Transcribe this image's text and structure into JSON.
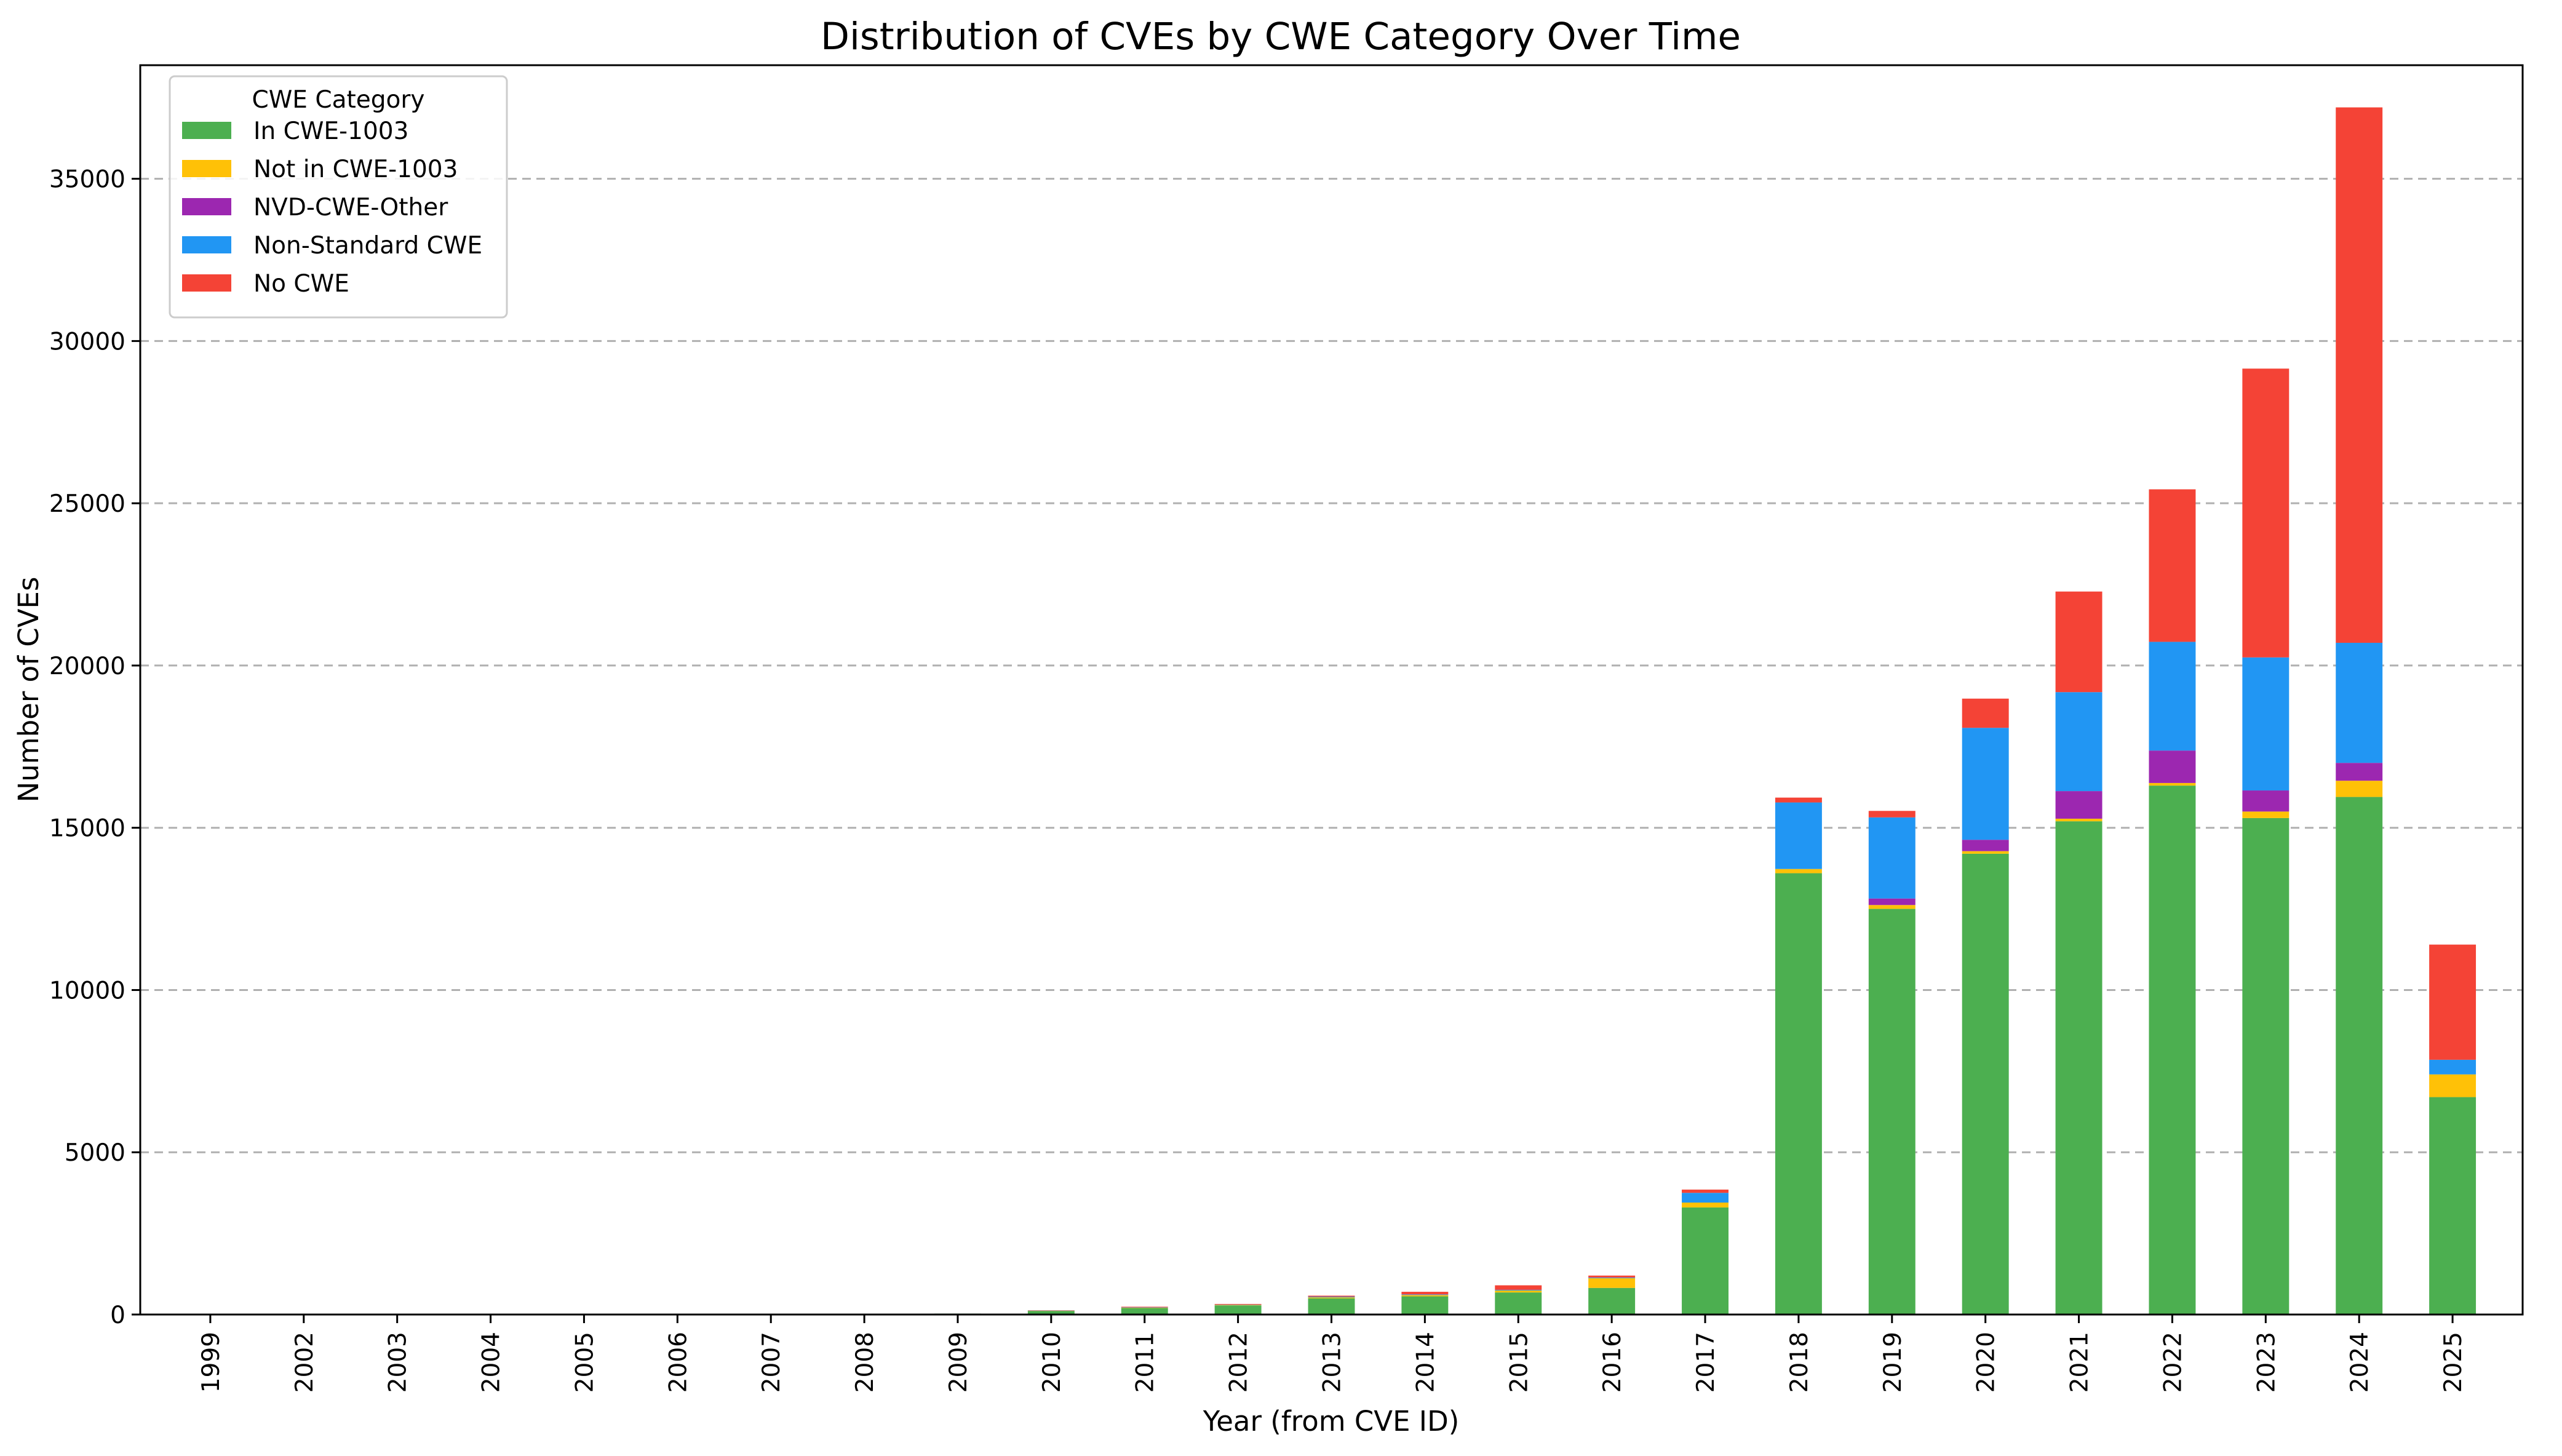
{
  "chart_data": {
    "type": "bar",
    "stacked": true,
    "title": "Distribution of CVEs by CWE Category Over Time",
    "xlabel": "Year (from CVE ID)",
    "ylabel": "Number of CVEs",
    "ylim": [
      0,
      38500
    ],
    "yticks": [
      0,
      5000,
      10000,
      15000,
      20000,
      25000,
      30000,
      35000
    ],
    "grid": "y-dashed",
    "legend": {
      "title": "CWE Category",
      "placement": "top-left"
    },
    "categories": [
      "1999",
      "2002",
      "2003",
      "2004",
      "2005",
      "2006",
      "2007",
      "2008",
      "2009",
      "2010",
      "2011",
      "2012",
      "2013",
      "2014",
      "2015",
      "2016",
      "2017",
      "2018",
      "2019",
      "2020",
      "2021",
      "2022",
      "2023",
      "2024",
      "2025"
    ],
    "series": [
      {
        "name": "In CWE-1003",
        "color": "#4caf50",
        "values": [
          2,
          3,
          3,
          4,
          5,
          5,
          6,
          8,
          30,
          110,
          200,
          280,
          500,
          560,
          680,
          820,
          3300,
          13600,
          12500,
          14200,
          15200,
          16300,
          15300,
          15950,
          6700
        ]
      },
      {
        "name": "Not in CWE-1003",
        "color": "#ffc107",
        "values": [
          0,
          0,
          0,
          0,
          0,
          0,
          0,
          0,
          0,
          5,
          10,
          15,
          30,
          40,
          60,
          300,
          150,
          130,
          120,
          80,
          80,
          80,
          200,
          500,
          700
        ]
      },
      {
        "name": "NVD-CWE-Other",
        "color": "#9c27b0",
        "values": [
          0,
          0,
          0,
          0,
          0,
          0,
          0,
          0,
          0,
          0,
          0,
          0,
          0,
          0,
          0,
          0,
          0,
          0,
          200,
          350,
          850,
          1000,
          650,
          550,
          0
        ]
      },
      {
        "name": "Non-Standard CWE",
        "color": "#2196f3",
        "values": [
          0,
          0,
          0,
          0,
          0,
          0,
          0,
          0,
          0,
          5,
          10,
          10,
          20,
          20,
          20,
          20,
          300,
          2050,
          2500,
          3450,
          3050,
          3350,
          4100,
          3700,
          450
        ]
      },
      {
        "name": "No CWE",
        "color": "#f44336",
        "values": [
          0,
          0,
          0,
          0,
          0,
          0,
          0,
          0,
          0,
          10,
          20,
          20,
          30,
          80,
          140,
          60,
          100,
          150,
          200,
          900,
          3100,
          4700,
          8900,
          16500,
          3550
        ]
      }
    ]
  }
}
